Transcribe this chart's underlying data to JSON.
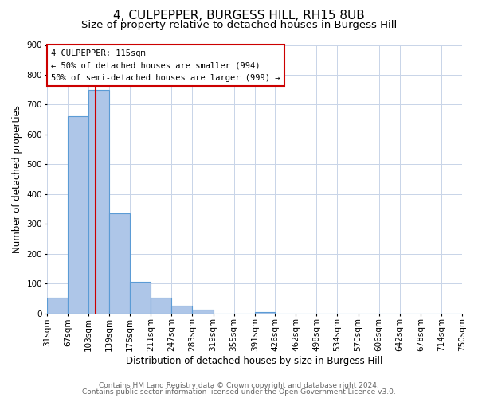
{
  "title": "4, CULPEPPER, BURGESS HILL, RH15 8UB",
  "subtitle": "Size of property relative to detached houses in Burgess Hill",
  "xlabel": "Distribution of detached houses by size in Burgess Hill",
  "ylabel": "Number of detached properties",
  "bins": [
    31,
    67,
    103,
    139,
    175,
    211,
    247,
    283,
    319,
    355,
    391,
    426,
    462,
    498,
    534,
    570,
    606,
    642,
    678,
    714,
    750
  ],
  "counts": [
    52,
    662,
    750,
    335,
    107,
    52,
    27,
    14,
    0,
    0,
    5,
    0,
    0,
    0,
    0,
    0,
    0,
    0,
    0,
    0
  ],
  "bar_color": "#aec6e8",
  "bar_edge_color": "#5b9bd5",
  "vline_x": 115,
  "vline_color": "#cc0000",
  "ylim": [
    0,
    900
  ],
  "yticks": [
    0,
    100,
    200,
    300,
    400,
    500,
    600,
    700,
    800,
    900
  ],
  "annotation_title": "4 CULPEPPER: 115sqm",
  "annotation_line1": "← 50% of detached houses are smaller (994)",
  "annotation_line2": "50% of semi-detached houses are larger (999) →",
  "annotation_box_color": "#ffffff",
  "annotation_box_edge": "#cc0000",
  "footer1": "Contains HM Land Registry data © Crown copyright and database right 2024.",
  "footer2": "Contains public sector information licensed under the Open Government Licence v3.0.",
  "background_color": "#ffffff",
  "grid_color": "#c8d4e8",
  "title_fontsize": 11,
  "subtitle_fontsize": 9.5,
  "axis_label_fontsize": 8.5,
  "tick_label_fontsize": 7.5,
  "footer_fontsize": 6.5
}
